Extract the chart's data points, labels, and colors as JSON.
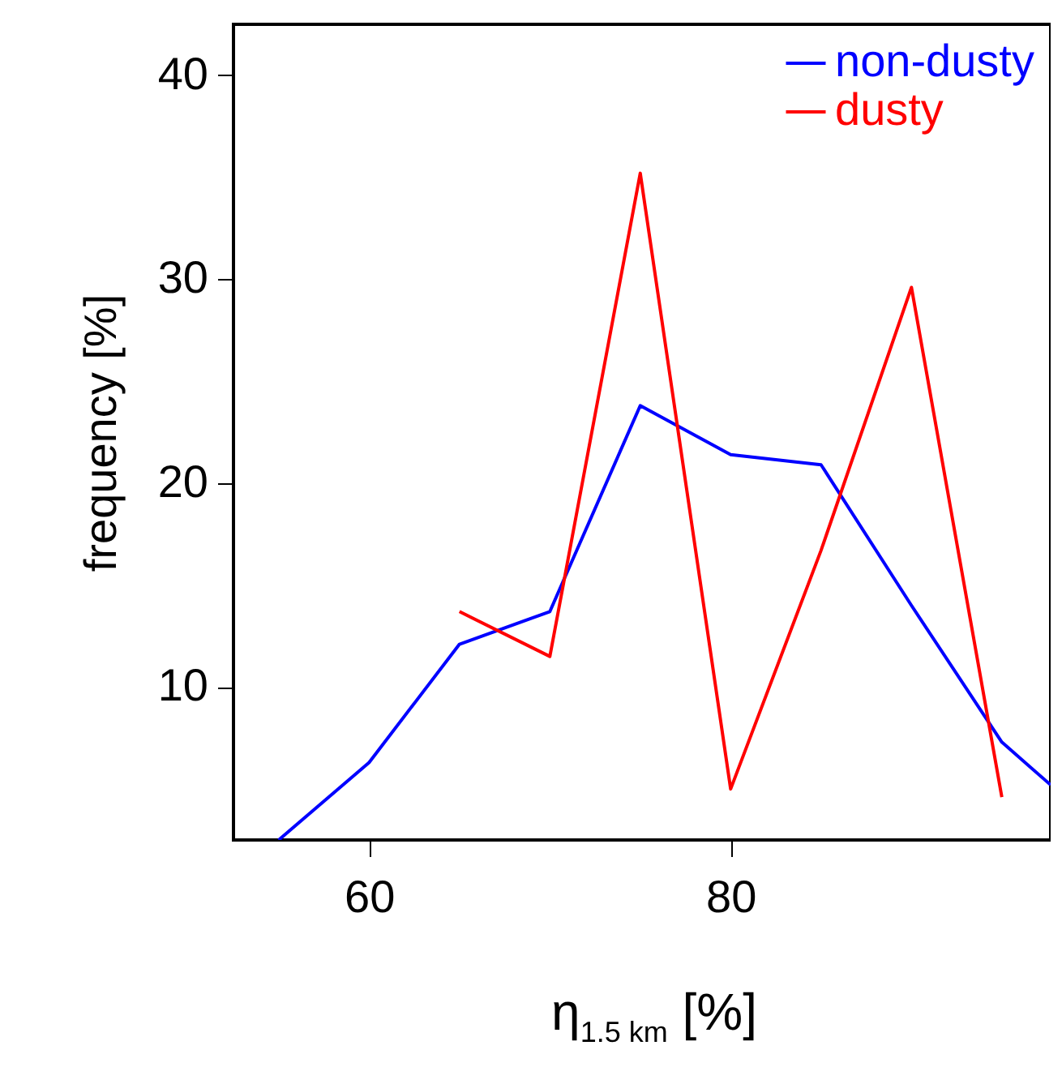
{
  "chart_data": {
    "type": "line",
    "xlabel": "η$_{1.5 km}$ [%]",
    "ylabel": "frequency [%]",
    "xlim": [
      52.5,
      97.7
    ],
    "xticks": [
      60,
      80
    ],
    "ylim": [
      2.5,
      42.5
    ],
    "yticks": [
      10,
      20,
      30,
      40
    ],
    "grid": false,
    "legend": "top right",
    "series": [
      {
        "name": "non-dusty",
        "color": "#0000ff",
        "x": [
          55,
          60,
          65,
          70,
          75,
          80,
          85,
          90,
          95,
          97.7
        ],
        "values": [
          2.5,
          6.3,
          12.1,
          13.7,
          23.8,
          21.4,
          20.9,
          14.0,
          7.3,
          5.2
        ]
      },
      {
        "name": "dusty",
        "color": "#ff0000",
        "x": [
          65,
          70,
          75,
          80,
          85,
          90,
          95
        ],
        "values": [
          13.7,
          11.5,
          35.2,
          5.0,
          16.7,
          29.6,
          4.6
        ]
      }
    ]
  }
}
